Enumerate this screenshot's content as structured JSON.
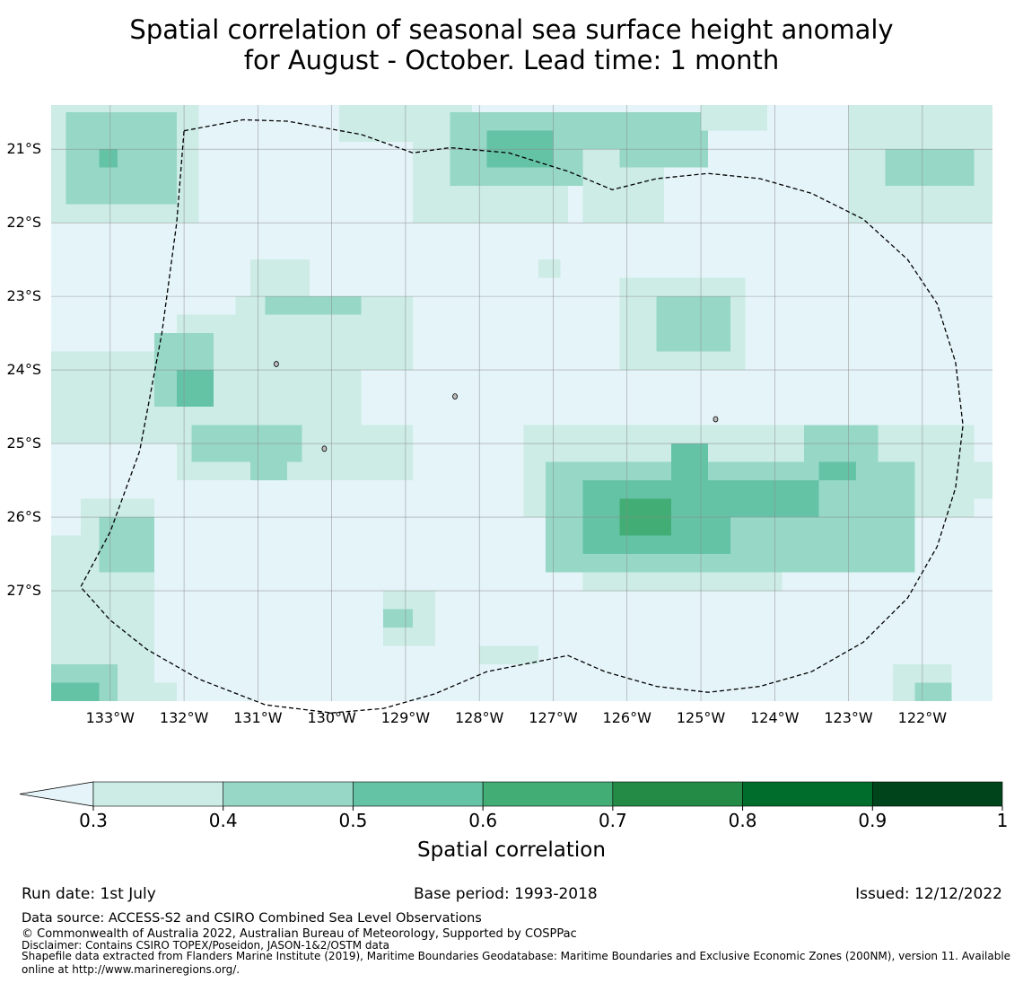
{
  "title": {
    "line1": "Spatial correlation of seasonal sea surface height anomaly",
    "line2": "for August - October. Lead time: 1 month"
  },
  "chart_data": {
    "type": "heatmap",
    "lon_range": [
      -133.8,
      -121.05
    ],
    "lat_range": [
      -28.5,
      -20.4
    ],
    "cell_deg": 0.25,
    "grid_origin": {
      "lon": -133.8,
      "lat": -20.4
    },
    "x_ticks": [
      {
        "value": -133,
        "label": "133°W"
      },
      {
        "value": -132,
        "label": "132°W"
      },
      {
        "value": -131,
        "label": "131°W"
      },
      {
        "value": -130,
        "label": "130°W"
      },
      {
        "value": -129,
        "label": "129°W"
      },
      {
        "value": -128,
        "label": "128°W"
      },
      {
        "value": -127,
        "label": "127°W"
      },
      {
        "value": -126,
        "label": "126°W"
      },
      {
        "value": -125,
        "label": "125°W"
      },
      {
        "value": -124,
        "label": "124°W"
      },
      {
        "value": -123,
        "label": "123°W"
      },
      {
        "value": -122,
        "label": "122°W"
      }
    ],
    "y_ticks": [
      {
        "value": -21,
        "label": "21°S"
      },
      {
        "value": -22,
        "label": "22°S"
      },
      {
        "value": -23,
        "label": "23°S"
      },
      {
        "value": -24,
        "label": "24°S"
      },
      {
        "value": -25,
        "label": "25°S"
      },
      {
        "value": -26,
        "label": "26°S"
      },
      {
        "value": -27,
        "label": "27°S"
      }
    ],
    "grid": true,
    "levels": [
      0.3,
      0.4,
      0.5,
      0.6,
      0.7,
      0.8,
      0.9,
      1
    ],
    "level_labels": [
      "0.3",
      "0.4",
      "0.5",
      "0.6",
      "0.7",
      "0.8",
      "0.9",
      "1"
    ],
    "colors": {
      "below": "#e5f4f9",
      "bins": [
        "#ccece5",
        "#97d7c6",
        "#65c3a5",
        "#42ae76",
        "#238b45",
        "#006d2c",
        "#00441b"
      ]
    },
    "colorbar_label": "Spatial correlation",
    "legend_position": "bottom",
    "regions": [
      {
        "bin": 0,
        "lon": [
          -133.8,
          -131.8
        ],
        "lat": [
          -22.0,
          -20.4
        ]
      },
      {
        "bin": 1,
        "lon": [
          -133.6,
          -132.1
        ],
        "lat": [
          -21.75,
          -20.5
        ]
      },
      {
        "bin": 2,
        "lon": [
          -133.15,
          -132.9
        ],
        "lat": [
          -21.25,
          -21.0
        ]
      },
      {
        "bin": 0,
        "lon": [
          -129.9,
          -128.1
        ],
        "lat": [
          -20.9,
          -20.4
        ]
      },
      {
        "bin": 0,
        "lon": [
          -128.9,
          -126.8
        ],
        "lat": [
          -22.0,
          -20.75
        ]
      },
      {
        "bin": 1,
        "lon": [
          -128.4,
          -126.1
        ],
        "lat": [
          -21.5,
          -20.5
        ]
      },
      {
        "bin": 2,
        "lon": [
          -127.9,
          -127.0
        ],
        "lat": [
          -21.25,
          -20.75
        ]
      },
      {
        "bin": 0,
        "lon": [
          -126.6,
          -125.5
        ],
        "lat": [
          -22.0,
          -21.0
        ]
      },
      {
        "bin": 1,
        "lon": [
          -126.1,
          -124.9
        ],
        "lat": [
          -21.25,
          -20.5
        ]
      },
      {
        "bin": 0,
        "lon": [
          -125.0,
          -124.1
        ],
        "lat": [
          -20.75,
          -20.4
        ]
      },
      {
        "bin": 0,
        "lon": [
          -123.0,
          -121.05
        ],
        "lat": [
          -22.0,
          -20.4
        ]
      },
      {
        "bin": 1,
        "lon": [
          -122.5,
          -121.3
        ],
        "lat": [
          -21.5,
          -21.0
        ]
      },
      {
        "bin": 0,
        "lon": [
          -127.2,
          -126.9
        ],
        "lat": [
          -22.75,
          -22.5
        ]
      },
      {
        "bin": 0,
        "lon": [
          -131.1,
          -130.3
        ],
        "lat": [
          -23.25,
          -22.5
        ]
      },
      {
        "bin": 0,
        "lon": [
          -131.3,
          -128.9
        ],
        "lat": [
          -24.0,
          -23.0
        ]
      },
      {
        "bin": 1,
        "lon": [
          -130.9,
          -129.6
        ],
        "lat": [
          -23.5,
          -23.0
        ]
      },
      {
        "bin": 1,
        "lon": [
          -130.2,
          -129.9
        ],
        "lat": [
          -23.75,
          -23.5
        ]
      },
      {
        "bin": 0,
        "lon": [
          -132.1,
          -129.6
        ],
        "lat": [
          -25.0,
          -23.25
        ]
      },
      {
        "bin": 0,
        "lon": [
          -133.8,
          -132.1
        ],
        "lat": [
          -25.0,
          -23.75
        ]
      },
      {
        "bin": 1,
        "lon": [
          -132.4,
          -131.6
        ],
        "lat": [
          -24.5,
          -23.5
        ]
      },
      {
        "bin": 2,
        "lon": [
          -132.1,
          -131.6
        ],
        "lat": [
          -24.5,
          -24.0
        ]
      },
      {
        "bin": 0,
        "lon": [
          -132.1,
          -128.9
        ],
        "lat": [
          -25.5,
          -24.75
        ]
      },
      {
        "bin": 1,
        "lon": [
          -131.9,
          -130.4
        ],
        "lat": [
          -25.25,
          -24.75
        ]
      },
      {
        "bin": 1,
        "lon": [
          -131.1,
          -130.6
        ],
        "lat": [
          -25.5,
          -25.0
        ]
      },
      {
        "bin": 0,
        "lon": [
          -126.1,
          -124.4
        ],
        "lat": [
          -24.0,
          -22.75
        ]
      },
      {
        "bin": 1,
        "lon": [
          -125.6,
          -124.6
        ],
        "lat": [
          -23.75,
          -23.0
        ]
      },
      {
        "bin": 0,
        "lon": [
          -127.4,
          -121.3
        ],
        "lat": [
          -26.0,
          -24.75
        ]
      },
      {
        "bin": 0,
        "lon": [
          -126.6,
          -123.9
        ],
        "lat": [
          -27.0,
          -25.5
        ]
      },
      {
        "bin": 0,
        "lon": [
          -121.6,
          -121.05
        ],
        "lat": [
          -25.75,
          -25.25
        ]
      },
      {
        "bin": 1,
        "lon": [
          -127.1,
          -122.1
        ],
        "lat": [
          -26.75,
          -25.25
        ]
      },
      {
        "bin": 1,
        "lon": [
          -123.6,
          -122.6
        ],
        "lat": [
          -25.5,
          -24.75
        ]
      },
      {
        "bin": 2,
        "lon": [
          -126.6,
          -124.6
        ],
        "lat": [
          -26.5,
          -25.5
        ]
      },
      {
        "bin": 2,
        "lon": [
          -125.4,
          -124.9
        ],
        "lat": [
          -25.5,
          -25.0
        ]
      },
      {
        "bin": 2,
        "lon": [
          -124.9,
          -123.4
        ],
        "lat": [
          -26.0,
          -25.5
        ]
      },
      {
        "bin": 2,
        "lon": [
          -123.4,
          -122.9
        ],
        "lat": [
          -25.5,
          -25.25
        ]
      },
      {
        "bin": 3,
        "lon": [
          -126.1,
          -125.4
        ],
        "lat": [
          -26.25,
          -25.75
        ]
      },
      {
        "bin": 0,
        "lon": [
          -133.8,
          -132.4
        ],
        "lat": [
          -28.5,
          -26.25
        ]
      },
      {
        "bin": 0,
        "lon": [
          -133.4,
          -132.4
        ],
        "lat": [
          -27.0,
          -25.75
        ]
      },
      {
        "bin": 1,
        "lon": [
          -133.15,
          -132.4
        ],
        "lat": [
          -26.75,
          -26.0
        ]
      },
      {
        "bin": 1,
        "lon": [
          -133.8,
          -132.9
        ],
        "lat": [
          -28.5,
          -28.0
        ]
      },
      {
        "bin": 2,
        "lon": [
          -133.8,
          -133.15
        ],
        "lat": [
          -28.5,
          -28.25
        ]
      },
      {
        "bin": 0,
        "lon": [
          -132.9,
          -132.1
        ],
        "lat": [
          -28.5,
          -28.25
        ]
      },
      {
        "bin": 0,
        "lon": [
          -129.3,
          -128.6
        ],
        "lat": [
          -27.75,
          -27.0
        ]
      },
      {
        "bin": 1,
        "lon": [
          -129.3,
          -128.9
        ],
        "lat": [
          -27.5,
          -27.25
        ]
      },
      {
        "bin": 0,
        "lon": [
          -128.0,
          -127.2
        ],
        "lat": [
          -28.0,
          -27.75
        ]
      },
      {
        "bin": 0,
        "lon": [
          -122.4,
          -121.6
        ],
        "lat": [
          -28.5,
          -28.0
        ]
      },
      {
        "bin": 1,
        "lon": [
          -122.1,
          -121.6
        ],
        "lat": [
          -28.5,
          -28.25
        ]
      }
    ],
    "eez_outline": [
      [
        -132.0,
        -20.75
      ],
      [
        -131.2,
        -20.6
      ],
      [
        -130.6,
        -20.62
      ],
      [
        -129.6,
        -20.8
      ],
      [
        -128.9,
        -21.05
      ],
      [
        -128.4,
        -20.98
      ],
      [
        -127.6,
        -21.05
      ],
      [
        -126.8,
        -21.3
      ],
      [
        -126.2,
        -21.55
      ],
      [
        -125.6,
        -21.4
      ],
      [
        -124.9,
        -21.33
      ],
      [
        -124.2,
        -21.4
      ],
      [
        -123.5,
        -21.6
      ],
      [
        -122.8,
        -21.95
      ],
      [
        -122.2,
        -22.5
      ],
      [
        -121.8,
        -23.1
      ],
      [
        -121.55,
        -23.9
      ],
      [
        -121.45,
        -24.75
      ],
      [
        -121.55,
        -25.6
      ],
      [
        -121.8,
        -26.4
      ],
      [
        -122.2,
        -27.1
      ],
      [
        -122.8,
        -27.7
      ],
      [
        -123.5,
        -28.1
      ],
      [
        -124.2,
        -28.3
      ],
      [
        -124.9,
        -28.38
      ],
      [
        -125.6,
        -28.3
      ],
      [
        -126.3,
        -28.1
      ],
      [
        -126.8,
        -27.88
      ],
      [
        -127.4,
        -28.0
      ],
      [
        -127.9,
        -28.1
      ],
      [
        -128.6,
        -28.4
      ],
      [
        -129.3,
        -28.6
      ],
      [
        -130.0,
        -28.66
      ],
      [
        -130.9,
        -28.55
      ],
      [
        -131.8,
        -28.2
      ],
      [
        -132.5,
        -27.8
      ],
      [
        -133.0,
        -27.4
      ],
      [
        -133.4,
        -26.95
      ],
      [
        -133.0,
        -26.2
      ],
      [
        -132.6,
        -25.1
      ],
      [
        -132.3,
        -23.5
      ],
      [
        -132.1,
        -22.0
      ],
      [
        -132.0,
        -20.75
      ]
    ],
    "islands": [
      {
        "lon": -128.33,
        "lat": -24.36
      },
      {
        "lon": -130.1,
        "lat": -25.07
      },
      {
        "lon": -124.8,
        "lat": -24.67
      },
      {
        "lon": -130.75,
        "lat": -23.92
      }
    ]
  },
  "footer": {
    "run_date": "Run date: 1st July",
    "base_period": "Base period: 1993-2018",
    "issued": "Issued: 12/12/2022",
    "data_source": "Data source: ACCESS-S2 and CSIRO Combined Sea Level Observations",
    "copyright": "© Commonwealth of Australia 2022, Australian Bureau of Meteorology, Supported by COSPPac",
    "disclaimer": "Disclaimer: Contains CSIRO TOPEX/Poseidon, JASON-1&2/OSTM data",
    "shapefile": "Shapefile data extracted from Flanders Marine Institute (2019), Maritime Boundaries Geodatabase: Maritime Boundaries and Exclusive Economic Zones (200NM), version 11. Available online at http://www.marineregions.org/."
  }
}
